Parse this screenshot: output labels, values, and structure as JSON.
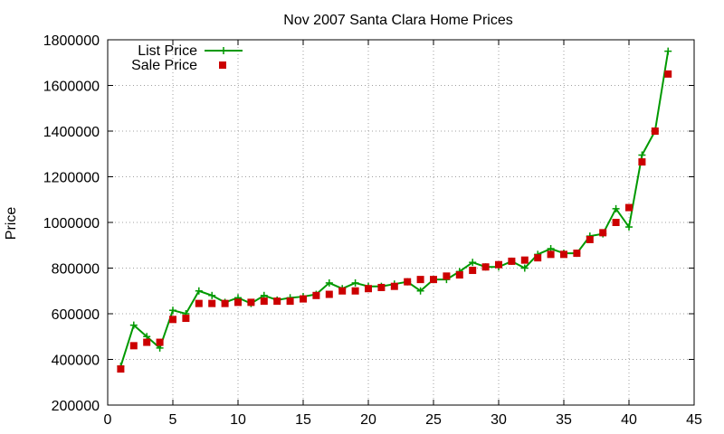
{
  "chart_data": {
    "type": "line",
    "title": "Nov 2007 Santa Clara Home Prices",
    "xlabel": "",
    "ylabel": "Price",
    "xlim": [
      0,
      45
    ],
    "ylim": [
      200000,
      1800000
    ],
    "xticks": [
      0,
      5,
      10,
      15,
      20,
      25,
      30,
      35,
      40,
      45
    ],
    "yticks": [
      200000,
      400000,
      600000,
      800000,
      1000000,
      1200000,
      1400000,
      1600000,
      1800000
    ],
    "grid": true,
    "legend_position": "top-left",
    "series": [
      {
        "name": "List Price",
        "style": "line-plus",
        "color": "#009900",
        "x": [
          1,
          2,
          3,
          4,
          5,
          6,
          7,
          8,
          9,
          10,
          11,
          12,
          13,
          14,
          15,
          16,
          17,
          18,
          19,
          20,
          21,
          22,
          23,
          24,
          25,
          26,
          27,
          28,
          29,
          30,
          31,
          32,
          33,
          34,
          35,
          36,
          37,
          38,
          39,
          40,
          41,
          42,
          43
        ],
        "y": [
          370000,
          550000,
          500000,
          450000,
          615000,
          600000,
          700000,
          680000,
          650000,
          670000,
          645000,
          680000,
          660000,
          670000,
          675000,
          685000,
          735000,
          710000,
          735000,
          720000,
          720000,
          730000,
          740000,
          700000,
          750000,
          750000,
          785000,
          825000,
          805000,
          805000,
          830000,
          800000,
          860000,
          885000,
          865000,
          865000,
          940000,
          950000,
          1060000,
          980000,
          1295000,
          1400000,
          1750000
        ]
      },
      {
        "name": "Sale Price",
        "style": "squares",
        "color": "#cc0000",
        "x": [
          1,
          2,
          3,
          4,
          5,
          6,
          7,
          8,
          9,
          10,
          11,
          12,
          13,
          14,
          15,
          16,
          17,
          18,
          19,
          20,
          21,
          22,
          23,
          24,
          25,
          26,
          27,
          28,
          29,
          30,
          31,
          32,
          33,
          34,
          35,
          36,
          37,
          38,
          39,
          40,
          41,
          42,
          43
        ],
        "y": [
          358000,
          460000,
          475000,
          475000,
          575000,
          580000,
          645000,
          645000,
          645000,
          650000,
          650000,
          655000,
          655000,
          655000,
          665000,
          680000,
          685000,
          700000,
          700000,
          710000,
          715000,
          720000,
          740000,
          750000,
          750000,
          765000,
          770000,
          790000,
          805000,
          815000,
          830000,
          835000,
          845000,
          860000,
          860000,
          865000,
          925000,
          955000,
          1000000,
          1065000,
          1265000,
          1400000,
          1650000
        ]
      }
    ]
  }
}
